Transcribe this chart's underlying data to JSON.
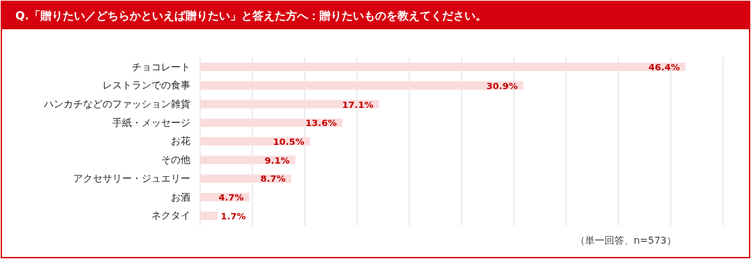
{
  "chart_data": {
    "type": "bar",
    "orientation": "horizontal",
    "title": "Q.「贈りたい／どちらかといえば贈りたい」と答えた方へ：贈りたいものを教えてください。",
    "categories": [
      "チョコレート",
      "レストランでの食事",
      "ハンカチなどのファッション雑貨",
      "手紙・メッセージ",
      "お花",
      "その他",
      "アクセサリー・ジュエリー",
      "お酒",
      "ネクタイ"
    ],
    "values": [
      46.4,
      30.9,
      17.1,
      13.6,
      10.5,
      9.1,
      8.7,
      4.7,
      1.7
    ],
    "value_labels": [
      "46.4%",
      "30.9%",
      "17.1%",
      "13.6%",
      "10.5%",
      "9.1%",
      "8.7%",
      "4.7%",
      "1.7%"
    ],
    "color": "#fbdcdc",
    "xlim": [
      0,
      50
    ],
    "xticks": [
      {
        "value": 0,
        "label": null
      },
      {
        "value": 5,
        "label": null
      },
      {
        "value": 10,
        "label": null
      },
      {
        "value": 15,
        "label": null
      },
      {
        "value": 20,
        "label": null
      },
      {
        "value": 25,
        "label": null
      },
      {
        "value": 30,
        "label": null
      },
      {
        "value": 35,
        "label": null
      },
      {
        "value": 40,
        "label": null
      },
      {
        "value": 45,
        "label": null
      },
      {
        "value": 50,
        "label": null
      }
    ],
    "grid": "x",
    "tick_labels": "y",
    "annotations": [
      "（単一回答、n=573）"
    ]
  }
}
